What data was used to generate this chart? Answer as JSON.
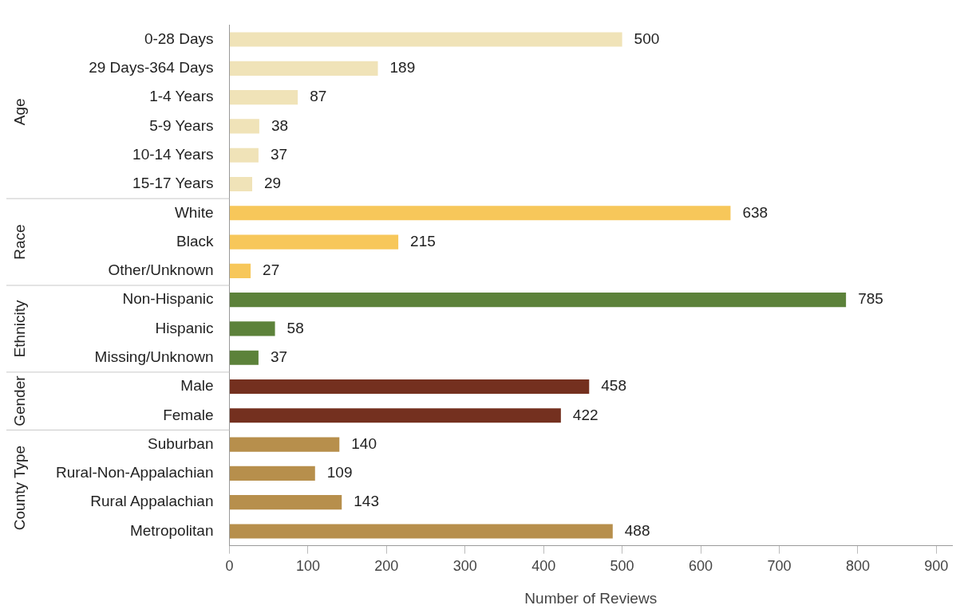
{
  "chart_data": {
    "type": "bar",
    "orientation": "horizontal",
    "xlabel": "Number of Reviews",
    "categories": [
      "0-28 Days",
      "29 Days-364 Days",
      "1-4 Years",
      "5-9 Years",
      "10-14 Years",
      "15-17 Years",
      "White",
      "Black",
      "Other/Unknown",
      "Non-Hispanic",
      "Hispanic",
      "Missing/Unknown",
      "Male",
      "Female",
      "Suburban",
      "Rural-Non-Appalachian",
      "Rural Appalachian",
      "Metropolitan"
    ],
    "values": [
      500,
      189,
      87,
      38,
      37,
      29,
      638,
      215,
      27,
      785,
      58,
      37,
      458,
      422,
      140,
      109,
      143,
      488
    ],
    "colors": [
      "#f0e3b8",
      "#f0e3b8",
      "#f0e3b8",
      "#f0e3b8",
      "#f0e3b8",
      "#f0e3b8",
      "#f7c75a",
      "#f7c75a",
      "#f7c75a",
      "#5c823a",
      "#5c823a",
      "#5c823a",
      "#74301f",
      "#74301f",
      "#b78f4c",
      "#b78f4c",
      "#b78f4c",
      "#b78f4c"
    ],
    "data_labels": true,
    "grid": false,
    "legend": false,
    "xlim": [
      0,
      920
    ],
    "xticks": [
      0,
      100,
      200,
      300,
      400,
      500,
      600,
      700,
      800,
      900
    ],
    "annotations": [
      "Age",
      "Race",
      "Ethnicity",
      "Gender",
      "County Type"
    ]
  }
}
